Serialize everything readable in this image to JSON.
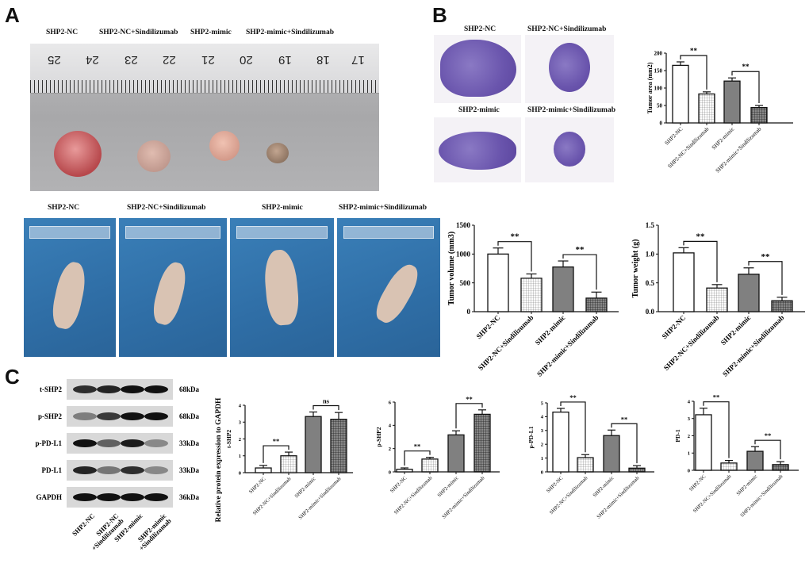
{
  "panels": {
    "a": "A",
    "b": "B",
    "c": "C"
  },
  "groups": [
    "SHP2-NC",
    "SHP2-NC+Sindilizumab",
    "SHP2-mimic",
    "SHP2-mimic+Sindilizumab"
  ],
  "ruler_numbers": [
    "25",
    "24",
    "23",
    "22",
    "21",
    "20",
    "19",
    "18",
    "17"
  ],
  "blot": {
    "rows": [
      {
        "label": "t-SHP2",
        "kda": "68kDa",
        "intensity": [
          0.85,
          0.9,
          1.0,
          1.0
        ]
      },
      {
        "label": "p-SHP2",
        "kda": "68kDa",
        "intensity": [
          0.45,
          0.8,
          1.0,
          1.0
        ]
      },
      {
        "label": "p-PD-L1",
        "kda": "33kDa",
        "intensity": [
          1.0,
          0.6,
          0.95,
          0.4
        ]
      },
      {
        "label": "PD-L1",
        "kda": "33kDa",
        "intensity": [
          0.9,
          0.5,
          0.85,
          0.4
        ]
      },
      {
        "label": "GAPDH",
        "kda": "36kDa",
        "intensity": [
          1.0,
          1.0,
          1.0,
          1.0
        ]
      }
    ],
    "lanes": [
      "SHP2-NC",
      "SHP2-NC\n+Sindilizumab",
      "SHP2-mimic",
      "SHP2-mimic\n+Sindilizumab"
    ]
  },
  "c_ylabel": "Relative protein expression to GAPDH",
  "colors": {
    "fill1": "#ffffff",
    "fill3": "#808080",
    "axis": "#111111"
  },
  "chart_data": [
    {
      "id": "area",
      "type": "bar",
      "ylabel": "Tumor area (mm2)",
      "ylim": [
        0,
        200
      ],
      "ticks": [
        "0",
        "50",
        "100",
        "150",
        "200"
      ],
      "categories": [
        "SHP2-NC",
        "SHP2-NC+Sindilizumab",
        "SHP2-mimic",
        "SHP2-mimic+Sindilizumab"
      ],
      "values": [
        165,
        83,
        120,
        44
      ],
      "errors": [
        10,
        6,
        9,
        6
      ],
      "significance": [
        {
          "pair": [
            0,
            1
          ],
          "label": "**"
        },
        {
          "pair": [
            2,
            3
          ],
          "label": "**"
        }
      ]
    },
    {
      "id": "volume",
      "type": "bar",
      "ylabel": "Tumor volume (mm3)",
      "ylim": [
        0,
        1500
      ],
      "ticks": [
        "0",
        "500",
        "1000",
        "1500"
      ],
      "categories": [
        "SHP2-NC",
        "SHP2-NC+Sindilizumab",
        "SHP2-mimic",
        "SHP2-mimic+Sindilizumab"
      ],
      "values": [
        1000,
        580,
        775,
        235
      ],
      "errors": [
        105,
        75,
        105,
        105
      ],
      "significance": [
        {
          "pair": [
            0,
            1
          ],
          "label": "**"
        },
        {
          "pair": [
            2,
            3
          ],
          "label": "**"
        }
      ]
    },
    {
      "id": "weight",
      "type": "bar",
      "ylabel": "Tumor weight (g)",
      "ylim": [
        0,
        1.5
      ],
      "ticks": [
        "0.0",
        "0.5",
        "1.0",
        "1.5"
      ],
      "categories": [
        "SHP2-NC",
        "SHP2-NC+Sindilizumab",
        "SHP2-mimic",
        "SHP2-mimic+Sindilizumab"
      ],
      "values": [
        1.02,
        0.41,
        0.65,
        0.19
      ],
      "errors": [
        0.09,
        0.06,
        0.11,
        0.06
      ],
      "significance": [
        {
          "pair": [
            0,
            1
          ],
          "label": "**"
        },
        {
          "pair": [
            2,
            3
          ],
          "label": "**"
        }
      ]
    },
    {
      "id": "tshp2",
      "type": "bar",
      "ylabel": "t-SHP2",
      "ylim": [
        0,
        4
      ],
      "ticks": [
        "0",
        "1",
        "2",
        "3",
        "4"
      ],
      "categories": [
        "SHP2-NC",
        "SHP2-NC+Sindilizumab",
        "SHP2-mimic",
        "SHP2-mimic+Sindilizumab"
      ],
      "values": [
        0.28,
        1.0,
        3.33,
        3.17
      ],
      "errors": [
        0.15,
        0.22,
        0.27,
        0.4
      ],
      "significance": [
        {
          "pair": [
            0,
            1
          ],
          "label": "**"
        },
        {
          "pair": [
            2,
            3
          ],
          "label": "ns"
        }
      ]
    },
    {
      "id": "pshp2",
      "type": "bar",
      "ylabel": "p-SHP2",
      "ylim": [
        0,
        6
      ],
      "ticks": [
        "0",
        "2",
        "4",
        "6"
      ],
      "categories": [
        "SHP2-NC",
        "SHP2-NC+Sindilizumab",
        "SHP2-mimic",
        "SHP2-mimic+Sindilizumab"
      ],
      "values": [
        0.22,
        1.1,
        3.18,
        4.95
      ],
      "errors": [
        0.12,
        0.15,
        0.35,
        0.38
      ],
      "significance": [
        {
          "pair": [
            0,
            1
          ],
          "label": "**"
        },
        {
          "pair": [
            2,
            3
          ],
          "label": "**"
        }
      ]
    },
    {
      "id": "ppdl1",
      "type": "bar",
      "ylabel": "p-PD-L1",
      "ylim": [
        0,
        5
      ],
      "ticks": [
        "0",
        "1",
        "2",
        "3",
        "4",
        "5"
      ],
      "categories": [
        "SHP2-NC",
        "SHP2-NC+Sindilizumab",
        "SHP2-mimic",
        "SHP2-mimic+Sindilizumab"
      ],
      "values": [
        4.33,
        1.03,
        2.63,
        0.27
      ],
      "errors": [
        0.27,
        0.22,
        0.4,
        0.18
      ],
      "significance": [
        {
          "pair": [
            0,
            1
          ],
          "label": "**"
        },
        {
          "pair": [
            2,
            3
          ],
          "label": "**"
        }
      ]
    },
    {
      "id": "pd1",
      "type": "bar",
      "ylabel": "PD-1",
      "ylim": [
        0,
        4
      ],
      "ticks": [
        "0",
        "1",
        "2",
        "3",
        "4"
      ],
      "categories": [
        "SHP2-NC",
        "SHP2-NC+Sindilizumab",
        "SHP2-mimic",
        "SHP2-mimic+Sindilizumab"
      ],
      "values": [
        3.22,
        0.42,
        1.1,
        0.33
      ],
      "errors": [
        0.38,
        0.15,
        0.27,
        0.17
      ],
      "significance": [
        {
          "pair": [
            0,
            1
          ],
          "label": "**"
        },
        {
          "pair": [
            2,
            3
          ],
          "label": "**"
        }
      ]
    }
  ]
}
